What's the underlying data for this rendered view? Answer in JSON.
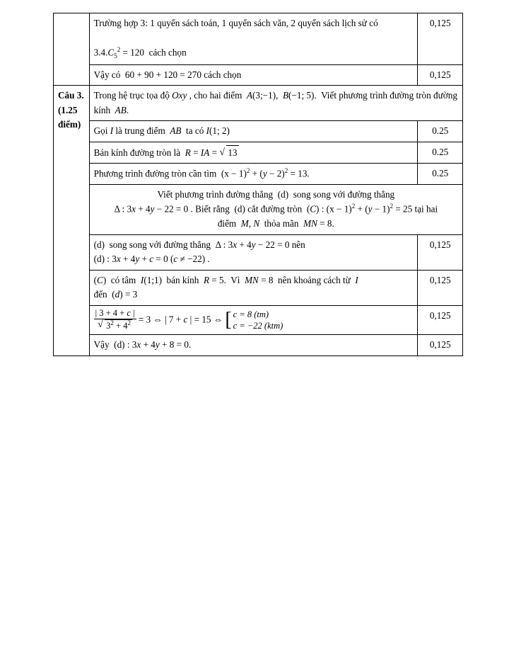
{
  "rows_top": [
    {
      "content_html": "Trường hợp  3: 1 quyển sách toán, 1 quyển sách văn, 2 quyển sách lịch sử có<br><br>3.4.<span class='ital'>C</span><span class='sub'>5</span><span class='sup'>2</span> = 120&nbsp; cách chọn",
      "score": "0,125"
    },
    {
      "content_html": "Vậy có &nbsp;60 + 90 + 120 = 270 cách chọn",
      "score": "0,125"
    }
  ],
  "q_label": "Câu 3. (1.25 điểm)",
  "rows_q": [
    {
      "content_html": "Trong hệ trục tọa độ <span class='ital'>Oxy</span> , cho hai điểm&nbsp; <span class='ital'>A</span>(3;−1),&nbsp; <span class='ital'>B</span>(−1; 5).&nbsp; Viết phương trình đường tròn đường kính&nbsp; <span class='ital'>AB</span>.",
      "score": ""
    },
    {
      "content_html": "Gọi&nbsp;<span class='ital'>I</span> là trung điểm&nbsp; <span class='ital'>AB</span> &nbsp;ta có&nbsp;<span class='ital'>I</span>(1; 2)",
      "score": "0.25"
    },
    {
      "content_html": "Bán kính đường tròn là &nbsp;<span class='ital'>R</span> = <span class='ital'>IA</span> = <span class='sqrt'><span class='rad'>13</span></span>",
      "score": "0.25"
    },
    {
      "content_html": "Phương trình đường tròn cần tìm &nbsp;(x − 1)<span class='sup'>2</span> + (<span class='ital'>y</span> − 2)<span class='sup'>2</span> = 13.",
      "score": "0.25"
    },
    {
      "center": true,
      "content_html": "Viết phương trình đường thẳng&nbsp; (d)&nbsp; song song với đường thẳng<br>Δ : 3<span class='ital'>x</span> + 4<span class='ital'>y</span> − 22 = 0 . Biết rằng&nbsp; (d) cắt đường tròn&nbsp; (<span class='ital'>C</span>) : (x − 1)<span class='sup'>2</span> + (<span class='ital'>y</span> − 1)<span class='sup'>2</span> = 25 tại hai<br>điểm&nbsp; <span class='ital'>M</span>, <span class='ital'>N</span>&nbsp; thỏa mãn&nbsp; <span class='ital'>MN</span> = 8.",
      "score": ""
    },
    {
      "content_html": "(d)&nbsp; song song với đường thẳng &nbsp;Δ : 3<span class='ital'>x</span> + 4<span class='ital'>y</span> − 22 = 0 nên<br>(d) : 3<span class='ital'>x</span> + 4<span class='ital'>y</span> + <span class='ital'>c</span> = 0 (<span class='ital'>c</span> ≠ −22) .",
      "score": "0,125"
    },
    {
      "content_html": "(<span class='ital'>C</span>)&nbsp; có tâm&nbsp; <span class='ital'>I</span>(1;1)&nbsp; bán kính&nbsp; <span class='ital'>R</span> = 5.&nbsp; Vì&nbsp; <span class='ital'>MN</span> = 8&nbsp; nên khoảng cách từ&nbsp; <span class='ital'>I</span><br>đến&nbsp; (<span class='ital'>d</span>) = 3",
      "score": "0,125"
    },
    {
      "content_html": "<span class='frac'><span class='num'>| 3 + 4 + <span class='ital'>c</span> |</span><span class='den'><span class='sqrt'><span class='rad'>3<span class='sup'>2</span> + 4<span class='sup'>2</span></span></span></span></span> = 3 ⇔ | 7 + <span class='ital'>c</span> | = 15 ⇔ <span class='cases-wrap'><span class='bracket'>[</span><span class='cases'><div>c = 8 (tm)</div><div>c = −22 (ktm)</div></span></span>",
      "score": "0,125"
    },
    {
      "content_html": "Vậy&nbsp; (d) : 3<span class='ital'>x</span> + 4<span class='ital'>y</span> + 8 = 0.",
      "score": "0,125"
    }
  ]
}
